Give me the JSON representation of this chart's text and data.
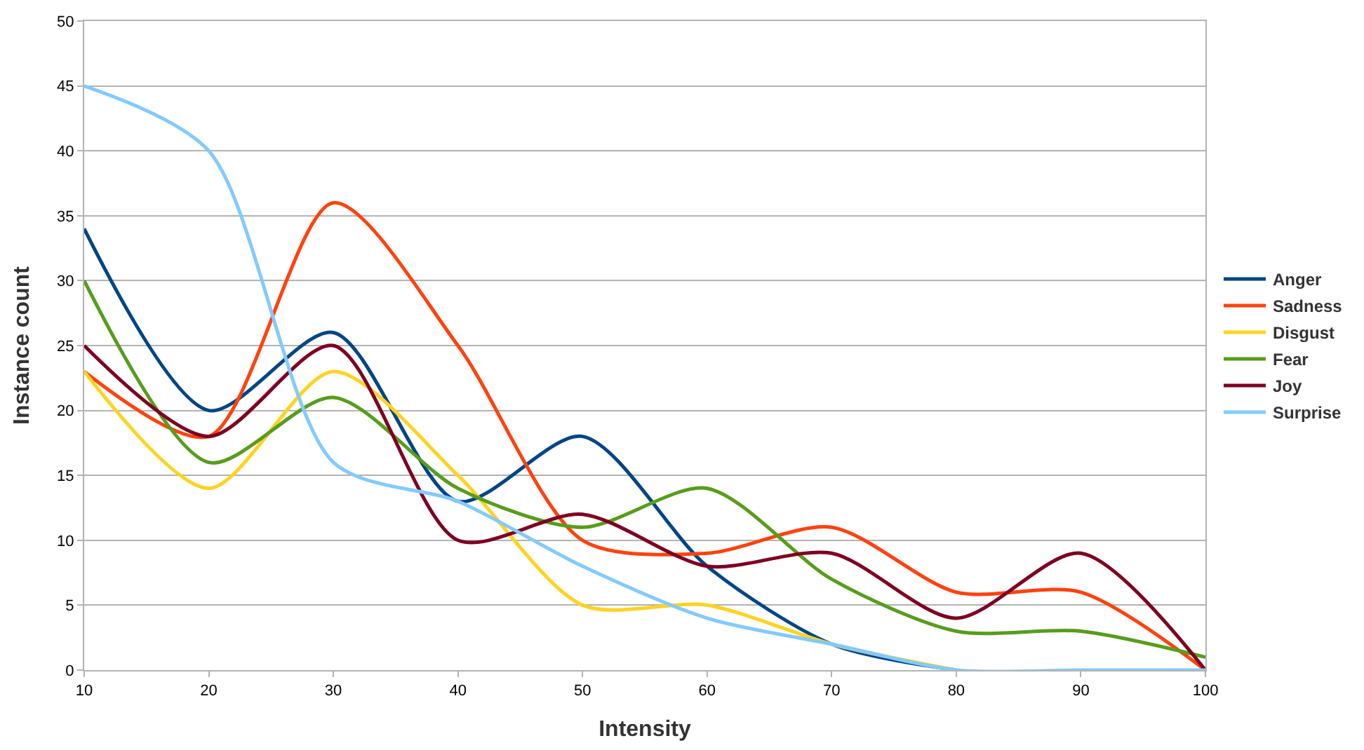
{
  "chart_data": {
    "type": "line",
    "xlabel": "Intensity",
    "ylabel": "Instance count",
    "x": [
      10,
      20,
      30,
      40,
      50,
      60,
      70,
      80,
      90,
      100
    ],
    "series": [
      {
        "name": "Anger",
        "color": "#004586",
        "values": [
          34,
          20,
          26,
          13,
          18,
          8,
          2,
          0,
          null,
          null
        ]
      },
      {
        "name": "Sadness",
        "color": "#ff420e",
        "values": [
          23,
          18,
          36,
          25,
          10,
          9,
          11,
          6,
          6,
          0
        ]
      },
      {
        "name": "Disgust",
        "color": "#ffd320",
        "values": [
          23,
          14,
          23,
          15,
          5,
          5,
          2,
          0,
          null,
          null
        ]
      },
      {
        "name": "Fear",
        "color": "#579d1c",
        "values": [
          30,
          16,
          21,
          14,
          11,
          14,
          7,
          3,
          3,
          1
        ]
      },
      {
        "name": "Joy",
        "color": "#7e0021",
        "values": [
          25,
          18,
          25,
          10,
          12,
          8,
          9,
          4,
          9,
          0
        ]
      },
      {
        "name": "Surprise",
        "color": "#83caff",
        "values": [
          45,
          40,
          16,
          13,
          8,
          4,
          2,
          0,
          0,
          0
        ]
      }
    ],
    "xlim": [
      10,
      100
    ],
    "xticks": [
      10,
      20,
      30,
      40,
      50,
      60,
      70,
      80,
      90,
      100
    ],
    "ylim": [
      0,
      50
    ],
    "yticks": [
      0,
      5,
      10,
      15,
      20,
      25,
      30,
      35,
      40,
      45,
      50
    ],
    "grid": "y",
    "legend": "right",
    "marker": "none",
    "line_style": "solid"
  }
}
